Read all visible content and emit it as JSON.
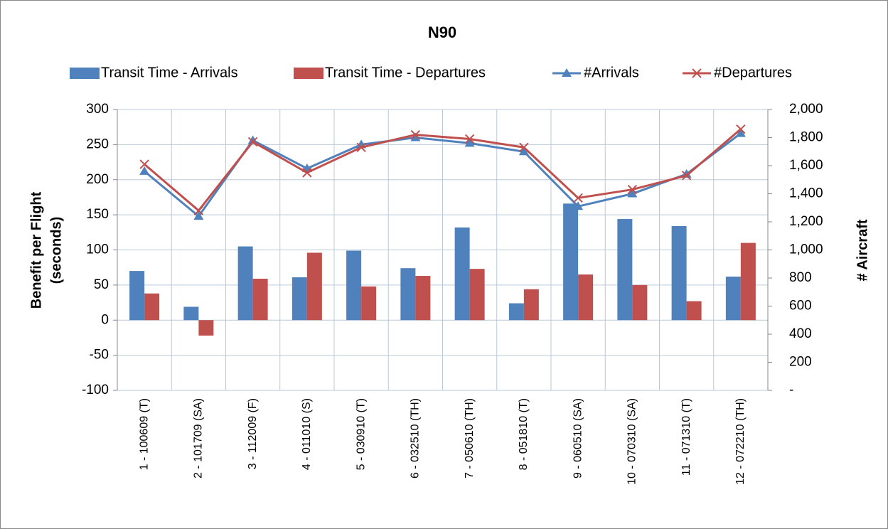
{
  "chart_data": {
    "type": "bar-line",
    "title": "N90",
    "ylabel": [
      "Benefit per Flight",
      "(seconds)"
    ],
    "y2label": "# Aircraft",
    "categories": [
      "1 - 100609 (T)",
      "2 - 101709 (SA)",
      "3 - 112009 (F)",
      "4 - 011010 (S)",
      "5 - 030910 (T)",
      "6 - 032510 (TH)",
      "7 - 050610 (TH)",
      "8 - 051810 (T)",
      "9 - 060510 (SA)",
      "10 - 070310 (SA)",
      "11 - 071310 (T)",
      "12 - 072210 (TH)"
    ],
    "series": [
      {
        "name": "Transit Time - Arrivals",
        "type": "bar",
        "color": "#4f81bd",
        "values": [
          70,
          19,
          105,
          61,
          99,
          74,
          132,
          24,
          166,
          144,
          134,
          62
        ]
      },
      {
        "name": "Transit Time - Departures",
        "type": "bar",
        "color": "#c0504d",
        "values": [
          38,
          -22,
          59,
          96,
          48,
          63,
          73,
          44,
          65,
          50,
          27,
          110
        ]
      },
      {
        "name": "#Arrivals",
        "type": "line",
        "marker": "triangle",
        "axis": "y2",
        "color": "#4f81bd",
        "values": [
          1560,
          1240,
          1780,
          1580,
          1750,
          1800,
          1760,
          1700,
          1310,
          1400,
          1540,
          1830
        ]
      },
      {
        "name": "#Departures",
        "type": "line",
        "marker": "x",
        "axis": "y2",
        "color": "#c0504d",
        "values": [
          1610,
          1280,
          1770,
          1550,
          1730,
          1820,
          1790,
          1730,
          1370,
          1430,
          1530,
          1860
        ]
      }
    ],
    "ylim": [
      -100,
      300
    ],
    "yticks": [
      -100,
      -50,
      0,
      50,
      100,
      150,
      200,
      250,
      300
    ],
    "y2lim": [
      0,
      2000
    ],
    "y2ticks": [
      {
        "value": 0,
        "label": "-"
      },
      200,
      400,
      600,
      800,
      {
        "value": 1000,
        "label": "1,000"
      },
      {
        "value": 1200,
        "label": "1,200"
      },
      {
        "value": 1400,
        "label": "1,400"
      },
      {
        "value": 1600,
        "label": "1,600"
      },
      {
        "value": 1800,
        "label": "1,800"
      },
      {
        "value": 2000,
        "label": "2,000"
      }
    ],
    "grid": true,
    "legend": "top"
  }
}
